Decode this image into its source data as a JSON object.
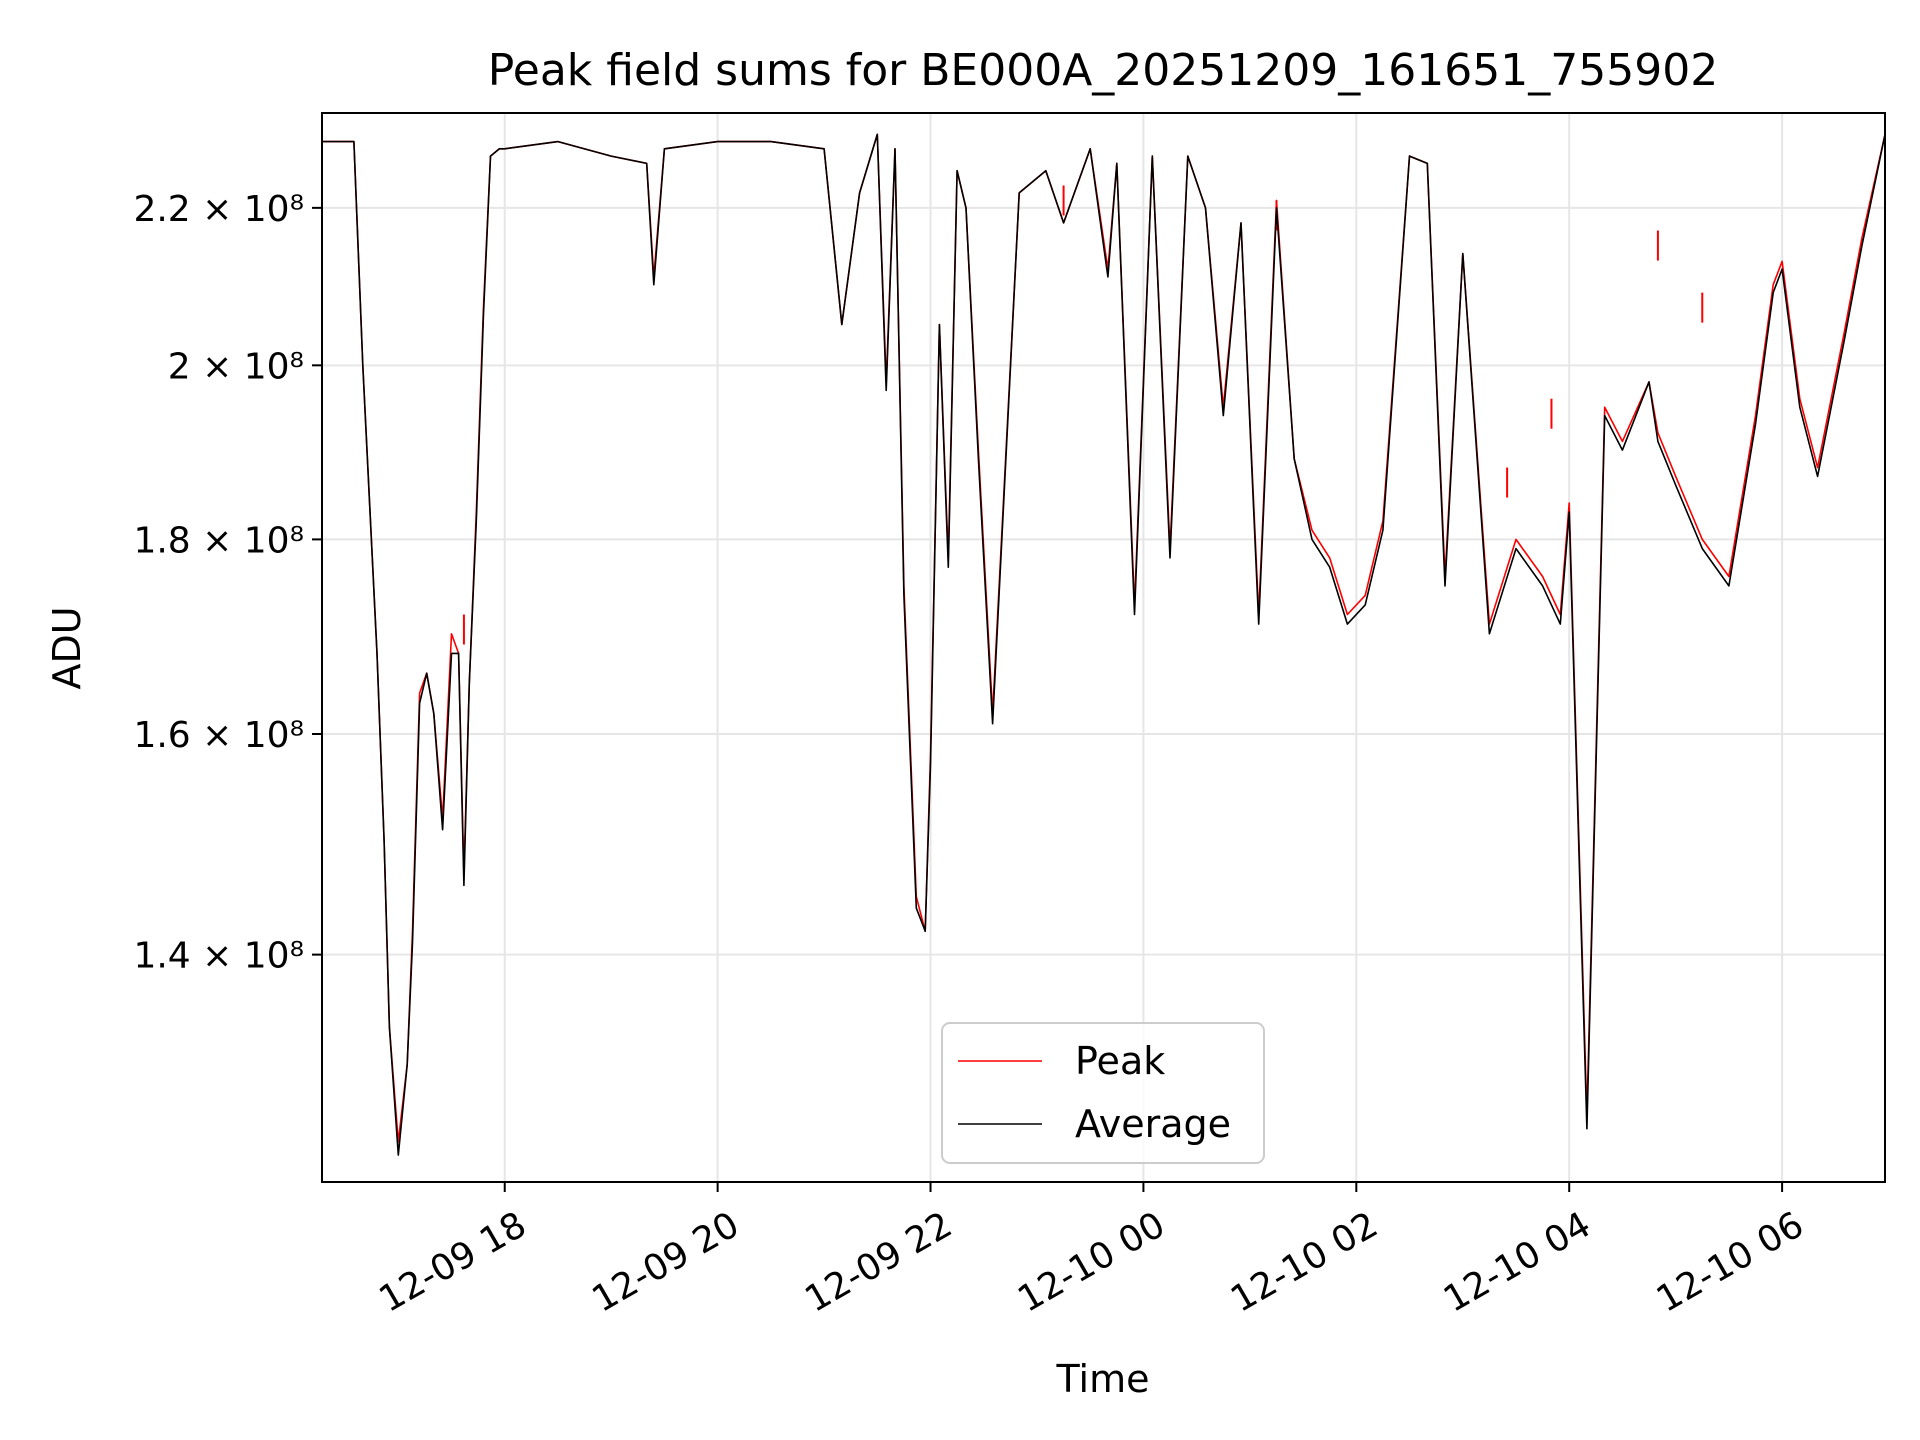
{
  "chart_data": {
    "type": "line",
    "title": "Peak field sums for BE000A_20251209_161651_755902",
    "xlabel": "Time",
    "ylabel": "ADU",
    "y_scale": "log",
    "ylim": [
      122000000,
      233000000
    ],
    "xlim": [
      "2025-12-09 16:17",
      "2025-12-10 06:58"
    ],
    "x_tick_values": [
      "2025-12-09 18:00",
      "2025-12-09 20:00",
      "2025-12-09 22:00",
      "2025-12-10 00:00",
      "2025-12-10 02:00",
      "2025-12-10 04:00",
      "2025-12-10 06:00"
    ],
    "x_tick_labels": [
      "12-09 18",
      "12-09 20",
      "12-09 22",
      "12-10 00",
      "12-10 02",
      "12-10 04",
      "12-10 06"
    ],
    "y_ticks": [
      {
        "value": 140000000,
        "label": "1.4 × 10⁸"
      },
      {
        "value": 160000000,
        "label": "1.6 × 10⁸"
      },
      {
        "value": 180000000,
        "label": "1.8 × 10⁸"
      },
      {
        "value": 200000000,
        "label": "2 × 10⁸"
      },
      {
        "value": 220000000,
        "label": "2.2 × 10⁸"
      }
    ],
    "grid": true,
    "legend_position": "bottom-center",
    "series": [
      {
        "name": "Peak",
        "color": "#ff0000",
        "x": [
          "2025-12-09 16:17",
          "2025-12-09 16:35",
          "2025-12-09 16:40",
          "2025-12-09 16:48",
          "2025-12-09 16:52",
          "2025-12-09 16:55",
          "2025-12-09 17:00",
          "2025-12-09 17:05",
          "2025-12-09 17:08",
          "2025-12-09 17:12",
          "2025-12-09 17:16",
          "2025-12-09 17:20",
          "2025-12-09 17:25",
          "2025-12-09 17:30",
          "2025-12-09 17:34",
          "2025-12-09 17:37",
          "2025-12-09 17:40",
          "2025-12-09 17:44",
          "2025-12-09 17:48",
          "2025-12-09 17:52",
          "2025-12-09 17:57",
          "2025-12-09 18:00",
          "2025-12-09 18:30",
          "2025-12-09 19:00",
          "2025-12-09 19:20",
          "2025-12-09 19:24",
          "2025-12-09 19:30",
          "2025-12-09 20:00",
          "2025-12-09 20:30",
          "2025-12-09 21:00",
          "2025-12-09 21:10",
          "2025-12-09 21:20",
          "2025-12-09 21:30",
          "2025-12-09 21:35",
          "2025-12-09 21:40",
          "2025-12-09 21:45",
          "2025-12-09 21:52",
          "2025-12-09 21:57",
          "2025-12-09 22:00",
          "2025-12-09 22:05",
          "2025-12-09 22:10",
          "2025-12-09 22:15",
          "2025-12-09 22:20",
          "2025-12-09 22:27",
          "2025-12-09 22:35",
          "2025-12-09 22:50",
          "2025-12-09 23:05",
          "2025-12-09 23:15",
          "2025-12-09 23:30",
          "2025-12-09 23:40",
          "2025-12-09 23:45",
          "2025-12-09 23:55",
          "2025-12-10 00:05",
          "2025-12-10 00:15",
          "2025-12-10 00:25",
          "2025-12-10 00:35",
          "2025-12-10 00:45",
          "2025-12-10 00:55",
          "2025-12-10 01:05",
          "2025-12-10 01:15",
          "2025-12-10 01:25",
          "2025-12-10 01:35",
          "2025-12-10 01:45",
          "2025-12-10 01:55",
          "2025-12-10 02:05",
          "2025-12-10 02:15",
          "2025-12-10 02:30",
          "2025-12-10 02:40",
          "2025-12-10 02:50",
          "2025-12-10 03:00",
          "2025-12-10 03:15",
          "2025-12-10 03:30",
          "2025-12-10 03:45",
          "2025-12-10 03:55",
          "2025-12-10 04:00",
          "2025-12-10 04:10",
          "2025-12-10 04:20",
          "2025-12-10 04:30",
          "2025-12-10 04:45",
          "2025-12-10 04:50",
          "2025-12-10 05:00",
          "2025-12-10 05:15",
          "2025-12-10 05:30",
          "2025-12-10 05:45",
          "2025-12-10 05:55",
          "2025-12-10 06:00",
          "2025-12-10 06:10",
          "2025-12-10 06:20",
          "2025-12-10 06:35",
          "2025-12-10 06:45",
          "2025-12-10 06:58"
        ],
        "values": [
          229000000,
          229000000,
          200000000,
          168000000,
          150000000,
          134000000,
          125000000,
          131000000,
          142000000,
          164000000,
          166000000,
          162000000,
          152000000,
          170000000,
          168000000,
          147000000,
          165000000,
          183000000,
          207000000,
          227000000,
          228000000,
          228000000,
          229000000,
          227000000,
          226000000,
          211000000,
          228000000,
          229000000,
          229000000,
          228000000,
          205000000,
          222000000,
          230000000,
          198000000,
          228000000,
          175000000,
          145000000,
          142000000,
          158000000,
          205000000,
          178000000,
          225000000,
          220000000,
          190000000,
          162000000,
          222000000,
          225000000,
          218000000,
          228000000,
          212000000,
          226000000,
          173000000,
          227000000,
          179000000,
          227000000,
          220000000,
          195000000,
          218000000,
          172000000,
          221000000,
          189000000,
          181000000,
          178000000,
          172000000,
          174000000,
          182000000,
          227000000,
          226000000,
          176000000,
          214000000,
          171000000,
          180000000,
          176000000,
          172000000,
          184000000,
          127000000,
          195000000,
          191000000,
          198000000,
          192000000,
          187000000,
          180000000,
          176000000,
          194000000,
          210000000,
          213000000,
          196000000,
          188000000,
          204000000,
          216000000,
          230000000
        ],
        "spikes": [
          {
            "x": "2025-12-09 17:37",
            "value": 172000000
          },
          {
            "x": "2025-12-09 23:15",
            "value": 223000000
          },
          {
            "x": "2025-12-10 01:15",
            "value": 221000000
          },
          {
            "x": "2025-12-10 03:25",
            "value": 188000000
          },
          {
            "x": "2025-12-10 03:50",
            "value": 196000000
          },
          {
            "x": "2025-12-10 04:50",
            "value": 217000000
          },
          {
            "x": "2025-12-10 05:15",
            "value": 209000000
          }
        ]
      },
      {
        "name": "Average",
        "color": "#000000",
        "x": [
          "2025-12-09 16:17",
          "2025-12-09 16:35",
          "2025-12-09 16:40",
          "2025-12-09 16:48",
          "2025-12-09 16:52",
          "2025-12-09 16:55",
          "2025-12-09 17:00",
          "2025-12-09 17:05",
          "2025-12-09 17:08",
          "2025-12-09 17:12",
          "2025-12-09 17:16",
          "2025-12-09 17:20",
          "2025-12-09 17:25",
          "2025-12-09 17:30",
          "2025-12-09 17:34",
          "2025-12-09 17:37",
          "2025-12-09 17:40",
          "2025-12-09 17:44",
          "2025-12-09 17:48",
          "2025-12-09 17:52",
          "2025-12-09 17:57",
          "2025-12-09 18:00",
          "2025-12-09 18:30",
          "2025-12-09 19:00",
          "2025-12-09 19:20",
          "2025-12-09 19:24",
          "2025-12-09 19:30",
          "2025-12-09 20:00",
          "2025-12-09 20:30",
          "2025-12-09 21:00",
          "2025-12-09 21:10",
          "2025-12-09 21:20",
          "2025-12-09 21:30",
          "2025-12-09 21:35",
          "2025-12-09 21:40",
          "2025-12-09 21:45",
          "2025-12-09 21:52",
          "2025-12-09 21:57",
          "2025-12-09 22:00",
          "2025-12-09 22:05",
          "2025-12-09 22:10",
          "2025-12-09 22:15",
          "2025-12-09 22:20",
          "2025-12-09 22:27",
          "2025-12-09 22:35",
          "2025-12-09 22:50",
          "2025-12-09 23:05",
          "2025-12-09 23:15",
          "2025-12-09 23:30",
          "2025-12-09 23:40",
          "2025-12-09 23:45",
          "2025-12-09 23:55",
          "2025-12-10 00:05",
          "2025-12-10 00:15",
          "2025-12-10 00:25",
          "2025-12-10 00:35",
          "2025-12-10 00:45",
          "2025-12-10 00:55",
          "2025-12-10 01:05",
          "2025-12-10 01:15",
          "2025-12-10 01:25",
          "2025-12-10 01:35",
          "2025-12-10 01:45",
          "2025-12-10 01:55",
          "2025-12-10 02:05",
          "2025-12-10 02:15",
          "2025-12-10 02:30",
          "2025-12-10 02:40",
          "2025-12-10 02:50",
          "2025-12-10 03:00",
          "2025-12-10 03:15",
          "2025-12-10 03:30",
          "2025-12-10 03:45",
          "2025-12-10 03:55",
          "2025-12-10 04:00",
          "2025-12-10 04:10",
          "2025-12-10 04:20",
          "2025-12-10 04:30",
          "2025-12-10 04:45",
          "2025-12-10 04:50",
          "2025-12-10 05:00",
          "2025-12-10 05:15",
          "2025-12-10 05:30",
          "2025-12-10 05:45",
          "2025-12-10 05:55",
          "2025-12-10 06:00",
          "2025-12-10 06:10",
          "2025-12-10 06:20",
          "2025-12-10 06:35",
          "2025-12-10 06:45",
          "2025-12-10 06:58"
        ],
        "values": [
          229000000,
          229000000,
          200000000,
          168000000,
          150000000,
          134000000,
          124000000,
          131000000,
          141000000,
          163000000,
          166000000,
          162000000,
          151000000,
          168000000,
          168000000,
          146000000,
          165000000,
          182000000,
          206000000,
          227000000,
          228000000,
          228000000,
          229000000,
          227000000,
          226000000,
          210000000,
          228000000,
          229000000,
          229000000,
          228000000,
          205000000,
          222000000,
          230000000,
          197000000,
          228000000,
          174000000,
          144000000,
          142000000,
          157000000,
          205000000,
          177000000,
          225000000,
          220000000,
          189000000,
          161000000,
          222000000,
          225000000,
          218000000,
          228000000,
          211000000,
          226000000,
          172000000,
          227000000,
          178000000,
          227000000,
          220000000,
          194000000,
          218000000,
          171000000,
          220000000,
          189000000,
          180000000,
          177000000,
          171000000,
          173000000,
          181000000,
          227000000,
          226000000,
          175000000,
          214000000,
          170000000,
          179000000,
          175000000,
          171000000,
          183000000,
          126000000,
          194000000,
          190000000,
          198000000,
          191000000,
          186000000,
          179000000,
          175000000,
          193000000,
          209000000,
          212000000,
          195000000,
          187000000,
          203000000,
          215000000,
          230000000
        ]
      }
    ]
  }
}
